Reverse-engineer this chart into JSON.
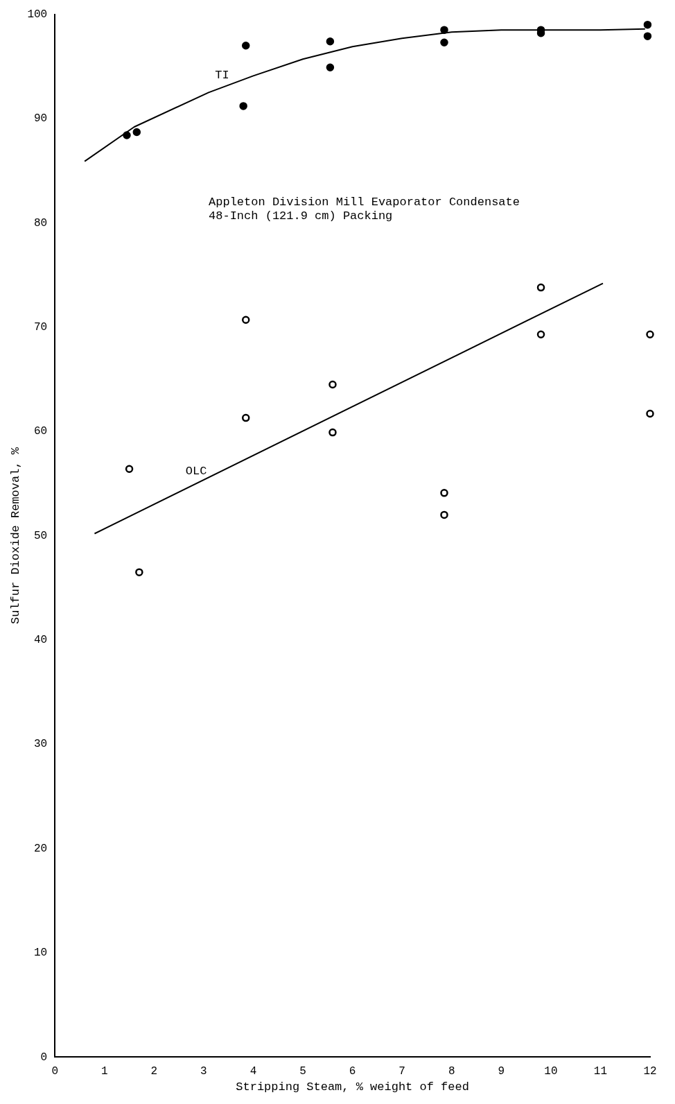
{
  "chart_data": {
    "type": "scatter",
    "xlabel": "Stripping Steam, % weight of feed",
    "ylabel": "Sulfur Dioxide Removal, %",
    "annotations": [
      "Appleton Division Mill Evaporator Condensate",
      "48-Inch (121.9 cm) Packing"
    ],
    "xlim": [
      0,
      12
    ],
    "xticks": [
      0,
      1,
      2,
      3,
      4,
      5,
      6,
      7,
      8,
      9,
      10,
      11,
      12
    ],
    "ylim": [
      0,
      100
    ],
    "yticks": [
      0,
      10,
      20,
      30,
      40,
      50,
      60,
      70,
      80,
      90,
      100
    ],
    "grid": false,
    "legend": false,
    "series": [
      {
        "type": "scatter",
        "color": "#000000",
        "marker": "circle",
        "x": [
          1.45,
          1.65,
          3.85,
          3.8,
          5.55,
          5.55,
          7.85,
          7.85,
          9.8,
          9.8,
          11.95,
          11.95
        ],
        "values": [
          88.4,
          88.7,
          97.0,
          91.2,
          97.4,
          94.9,
          98.5,
          97.3,
          98.5,
          98.2,
          99.0,
          97.9
        ]
      },
      {
        "type": "scatter",
        "color": "#000000",
        "marker": "circle-open",
        "x": [
          1.5,
          1.7,
          3.85,
          3.85,
          5.6,
          5.6,
          7.85,
          7.85,
          9.8,
          9.8,
          12.0,
          12.0
        ],
        "values": [
          56.4,
          46.5,
          70.7,
          61.3,
          64.5,
          59.9,
          54.1,
          52.0,
          73.8,
          69.3,
          69.3,
          61.7
        ]
      },
      {
        "type": "line",
        "name": "TI",
        "color": "#000000",
        "line_style": "solid",
        "x": [
          0.6,
          1.6,
          3.1,
          4.0,
          5.0,
          6.0,
          7.0,
          8.0,
          9.0,
          10.0,
          11.0,
          11.9
        ],
        "values": [
          85.9,
          89.2,
          92.5,
          94.1,
          95.7,
          96.9,
          97.7,
          98.3,
          98.5,
          98.5,
          98.5,
          98.6
        ]
      },
      {
        "type": "line",
        "name": "OLC",
        "color": "#000000",
        "line_style": "solid",
        "x": [
          0.8,
          11.05
        ],
        "values": [
          50.2,
          74.2
        ]
      }
    ]
  }
}
